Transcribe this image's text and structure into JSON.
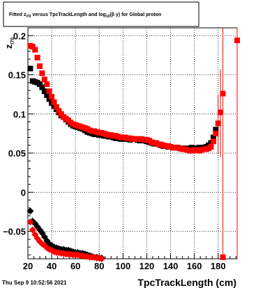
{
  "page": {
    "timestamp": "Thu Sep  9 10:52:56 2021"
  },
  "chart_data": {
    "type": "scatter",
    "title": {
      "prefix": "Fitted  z",
      "sub1": "I70",
      "middle": "  versus TpcTrackLength and log",
      "sub2": "10",
      "suffix": "(β  γ) for Global proton"
    },
    "xlabel": "TpcTrackLength (cm)",
    "ylabel": "z",
    "ylabel_sub": "I70",
    "xlim": [
      20,
      196
    ],
    "ylim": [
      -0.085,
      0.21
    ],
    "x_ticks": [
      20,
      40,
      60,
      80,
      100,
      120,
      140,
      160,
      180
    ],
    "x_tick_labels": [
      "20",
      "40",
      "60",
      "80",
      "100",
      "120",
      "140",
      "160",
      "180"
    ],
    "y_ticks": [
      -0.05,
      0,
      0.05,
      0.1,
      0.15,
      0.2
    ],
    "y_tick_labels": [
      "−0.05",
      "0",
      "0.05",
      "0.1",
      "0.15",
      "0.2"
    ],
    "grid": true,
    "colors": {
      "series_black": "#000000",
      "series_red": "#ff0000"
    },
    "series": [
      {
        "color": "#000000",
        "marker": "square",
        "points": [
          [
            22,
            0.158
          ],
          [
            24,
            0.142
          ],
          [
            26,
            0.141
          ],
          [
            28,
            0.14
          ],
          [
            30,
            0.138
          ],
          [
            32,
            0.134
          ],
          [
            34,
            0.129
          ],
          [
            36,
            0.124
          ],
          [
            38,
            0.119
          ],
          [
            40,
            0.114
          ],
          [
            42,
            0.11
          ],
          [
            44,
            0.106
          ],
          [
            46,
            0.102
          ],
          [
            48,
            0.098
          ],
          [
            50,
            0.096
          ],
          [
            52,
            0.093
          ],
          [
            54,
            0.09
          ],
          [
            56,
            0.087
          ],
          [
            58,
            0.085
          ],
          [
            60,
            0.084
          ],
          [
            62,
            0.083
          ],
          [
            64,
            0.082
          ],
          [
            66,
            0.081
          ],
          [
            68,
            0.079
          ],
          [
            70,
            0.077
          ],
          [
            72,
            0.076
          ],
          [
            74,
            0.075
          ],
          [
            76,
            0.074
          ],
          [
            78,
            0.074
          ],
          [
            80,
            0.073
          ],
          [
            82,
            0.073
          ],
          [
            84,
            0.072
          ],
          [
            86,
            0.072
          ],
          [
            88,
            0.071
          ],
          [
            90,
            0.071
          ],
          [
            92,
            0.07
          ],
          [
            94,
            0.069
          ],
          [
            96,
            0.069
          ],
          [
            98,
            0.068
          ],
          [
            100,
            0.068
          ],
          [
            102,
            0.068
          ],
          [
            104,
            0.068
          ],
          [
            106,
            0.067
          ],
          [
            108,
            0.068
          ],
          [
            110,
            0.068
          ],
          [
            112,
            0.067
          ],
          [
            114,
            0.066
          ],
          [
            116,
            0.066
          ],
          [
            118,
            0.066
          ],
          [
            120,
            0.065
          ],
          [
            122,
            0.064
          ],
          [
            124,
            0.063
          ],
          [
            126,
            0.062
          ],
          [
            128,
            0.062
          ],
          [
            130,
            0.061
          ],
          [
            132,
            0.06
          ],
          [
            134,
            0.059
          ],
          [
            136,
            0.059
          ],
          [
            138,
            0.058
          ],
          [
            140,
            0.058
          ],
          [
            142,
            0.057
          ],
          [
            144,
            0.057
          ],
          [
            146,
            0.057
          ],
          [
            148,
            0.056
          ],
          [
            150,
            0.056
          ],
          [
            152,
            0.056
          ],
          [
            154,
            0.056
          ],
          [
            156,
            0.056
          ],
          [
            158,
            0.057
          ],
          [
            160,
            0.056
          ],
          [
            162,
            0.056
          ],
          [
            164,
            0.057
          ],
          [
            166,
            0.057
          ],
          [
            168,
            0.057
          ],
          [
            170,
            0.058
          ],
          [
            172,
            0.06
          ],
          [
            174,
            0.063
          ],
          [
            176,
            0.07
          ],
          [
            178,
            0.08
          ]
        ]
      },
      {
        "color": "#ff0000",
        "marker": "square",
        "points": [
          [
            22,
            0.187
          ],
          [
            24,
            0.186
          ],
          [
            26,
            0.182
          ],
          [
            28,
            0.172
          ],
          [
            30,
            0.161
          ],
          [
            32,
            0.152
          ],
          [
            34,
            0.144
          ],
          [
            36,
            0.138
          ],
          [
            38,
            0.129
          ],
          [
            40,
            0.122
          ],
          [
            42,
            0.115
          ],
          [
            44,
            0.109
          ],
          [
            46,
            0.104
          ],
          [
            48,
            0.1
          ],
          [
            50,
            0.096
          ],
          [
            52,
            0.094
          ],
          [
            54,
            0.092
          ],
          [
            56,
            0.089
          ],
          [
            58,
            0.087
          ],
          [
            60,
            0.086
          ],
          [
            62,
            0.085
          ],
          [
            64,
            0.084
          ],
          [
            66,
            0.083
          ],
          [
            68,
            0.082
          ],
          [
            70,
            0.081
          ],
          [
            72,
            0.079
          ],
          [
            74,
            0.078
          ],
          [
            76,
            0.078
          ],
          [
            78,
            0.077
          ],
          [
            80,
            0.076
          ],
          [
            82,
            0.076
          ],
          [
            84,
            0.075
          ],
          [
            86,
            0.074
          ],
          [
            88,
            0.073
          ],
          [
            90,
            0.073
          ],
          [
            92,
            0.072
          ],
          [
            94,
            0.072
          ],
          [
            96,
            0.071
          ],
          [
            98,
            0.07
          ],
          [
            100,
            0.07
          ],
          [
            102,
            0.07
          ],
          [
            104,
            0.069
          ],
          [
            106,
            0.069
          ],
          [
            108,
            0.068
          ],
          [
            110,
            0.068
          ],
          [
            112,
            0.068
          ],
          [
            114,
            0.068
          ],
          [
            116,
            0.068
          ],
          [
            118,
            0.067
          ],
          [
            120,
            0.067
          ],
          [
            122,
            0.066
          ],
          [
            124,
            0.064
          ],
          [
            126,
            0.063
          ],
          [
            128,
            0.063
          ],
          [
            130,
            0.061
          ],
          [
            132,
            0.061
          ],
          [
            134,
            0.06
          ],
          [
            136,
            0.059
          ],
          [
            138,
            0.059
          ],
          [
            140,
            0.058
          ],
          [
            142,
            0.057
          ],
          [
            144,
            0.057
          ],
          [
            146,
            0.057
          ],
          [
            148,
            0.056
          ],
          [
            150,
            0.055
          ],
          [
            152,
            0.055
          ],
          [
            154,
            0.054
          ],
          [
            156,
            0.053
          ],
          [
            158,
            0.053
          ],
          [
            160,
            0.054
          ],
          [
            162,
            0.054
          ],
          [
            164,
            0.053
          ],
          [
            166,
            0.054
          ],
          [
            168,
            0.055
          ],
          [
            170,
            0.055
          ],
          [
            172,
            0.056
          ],
          [
            174,
            0.058
          ],
          [
            176,
            0.065
          ],
          [
            178,
            0.075
          ],
          [
            180,
            0.088
          ],
          [
            182,
            0.102
          ],
          [
            184,
            0.126
          ],
          [
            196,
            0.194
          ],
          [
            184,
            -0.083
          ]
        ]
      },
      {
        "color": "#000000",
        "marker": "diamond",
        "points": [
          [
            22,
            -0.024
          ],
          [
            24,
            -0.037
          ],
          [
            26,
            -0.04
          ],
          [
            28,
            -0.044
          ],
          [
            30,
            -0.048
          ],
          [
            32,
            -0.052
          ],
          [
            34,
            -0.057
          ],
          [
            36,
            -0.062
          ],
          [
            38,
            -0.066
          ],
          [
            40,
            -0.068
          ],
          [
            42,
            -0.07
          ],
          [
            44,
            -0.071
          ],
          [
            46,
            -0.072
          ],
          [
            48,
            -0.073
          ],
          [
            50,
            -0.073
          ],
          [
            52,
            -0.074
          ],
          [
            54,
            -0.074
          ],
          [
            56,
            -0.075
          ],
          [
            58,
            -0.076
          ],
          [
            60,
            -0.077
          ],
          [
            62,
            -0.077
          ],
          [
            64,
            -0.078
          ],
          [
            66,
            -0.078
          ],
          [
            68,
            -0.079
          ],
          [
            70,
            -0.08
          ],
          [
            72,
            -0.081
          ],
          [
            74,
            -0.082
          ],
          [
            76,
            -0.083
          ],
          [
            78,
            -0.083
          ],
          [
            80,
            -0.084
          ],
          [
            82,
            -0.084
          ]
        ]
      },
      {
        "color": "#ff0000",
        "marker": "diamond",
        "points": [
          [
            22,
            -0.038
          ],
          [
            24,
            -0.048
          ],
          [
            26,
            -0.054
          ],
          [
            28,
            -0.059
          ],
          [
            30,
            -0.063
          ],
          [
            32,
            -0.066
          ],
          [
            34,
            -0.068
          ],
          [
            36,
            -0.071
          ],
          [
            38,
            -0.073
          ],
          [
            40,
            -0.074
          ],
          [
            42,
            -0.076
          ],
          [
            44,
            -0.077
          ],
          [
            46,
            -0.077
          ],
          [
            48,
            -0.078
          ],
          [
            50,
            -0.078
          ],
          [
            52,
            -0.079
          ],
          [
            54,
            -0.079
          ],
          [
            56,
            -0.079
          ],
          [
            58,
            -0.08
          ],
          [
            60,
            -0.08
          ],
          [
            62,
            -0.08
          ],
          [
            64,
            -0.081
          ],
          [
            66,
            -0.081
          ],
          [
            68,
            -0.082
          ],
          [
            70,
            -0.082
          ],
          [
            72,
            -0.083
          ],
          [
            74,
            -0.083
          ],
          [
            76,
            -0.083
          ],
          [
            78,
            -0.084
          ],
          [
            80,
            -0.084
          ],
          [
            82,
            -0.085
          ]
        ]
      }
    ],
    "error_bars": [
      {
        "color": "#ff0000",
        "x": 180,
        "y_low": 0.05,
        "y_high": 0.125
      },
      {
        "color": "#ff0000",
        "x": 182,
        "y_low": 0.045,
        "y_high": 0.157
      },
      {
        "color": "#ff0000",
        "x": 184,
        "y_low": -0.085,
        "y_high": 0.21
      },
      {
        "color": "#ff0000",
        "x": 196,
        "y_low": -0.085,
        "y_high": 0.21
      }
    ]
  }
}
